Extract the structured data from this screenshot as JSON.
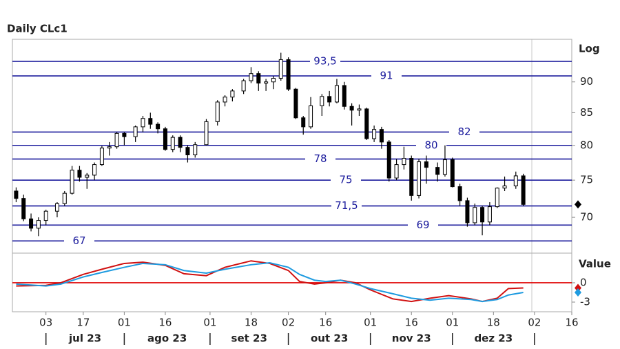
{
  "chart_data": [
    {
      "type": "candlestick",
      "title": "Daily CLc1",
      "scale_label": "Log",
      "log_scale": true,
      "ylim": [
        65.5,
        97.4
      ],
      "yticks": [
        70,
        75,
        80,
        85,
        90
      ],
      "xlim": [
        "2023-06-20",
        "2024-01-16"
      ],
      "levels": [
        {
          "value": 93.5,
          "label": "93,5"
        },
        {
          "value": 91,
          "label": "91"
        },
        {
          "value": 82,
          "label": "82"
        },
        {
          "value": 80,
          "label": "80"
        },
        {
          "value": 78,
          "label": "78"
        },
        {
          "value": 75,
          "label": "75"
        },
        {
          "value": 71.5,
          "label": "71,5"
        },
        {
          "value": 69,
          "label": "69"
        },
        {
          "value": 67,
          "label": "67"
        }
      ],
      "level_color": "#1a1a9c",
      "up_color": "#ffffff",
      "down_color": "#000000",
      "x": [
        "2023-06-21",
        "2023-06-23",
        "2023-06-27",
        "2023-06-29",
        "2023-07-03",
        "2023-07-06",
        "2023-07-10",
        "2023-07-12",
        "2023-07-14",
        "2023-07-18",
        "2023-07-20",
        "2023-07-24",
        "2023-07-26",
        "2023-07-28",
        "2023-08-01",
        "2023-08-04",
        "2023-08-08",
        "2023-08-10",
        "2023-08-14",
        "2023-08-16",
        "2023-08-18",
        "2023-08-22",
        "2023-08-24",
        "2023-08-28",
        "2023-08-31",
        "2023-09-05",
        "2023-09-07",
        "2023-09-11",
        "2023-09-14",
        "2023-09-18",
        "2023-09-20",
        "2023-09-22",
        "2023-09-26",
        "2023-09-28",
        "2023-10-02",
        "2023-10-04",
        "2023-10-06",
        "2023-10-10",
        "2023-10-13",
        "2023-10-17",
        "2023-10-19",
        "2023-10-23",
        "2023-10-25",
        "2023-10-27",
        "2023-10-31",
        "2023-11-02",
        "2023-11-06",
        "2023-11-08",
        "2023-11-10",
        "2023-11-14",
        "2023-11-16",
        "2023-11-20",
        "2023-11-22",
        "2023-11-27",
        "2023-11-29",
        "2023-12-01",
        "2023-12-05",
        "2023-12-07",
        "2023-12-11",
        "2023-12-13",
        "2023-12-15",
        "2023-12-19",
        "2023-12-21",
        "2023-12-26",
        "2023-12-28"
      ],
      "open": [
        73.5,
        72.5,
        69.8,
        68.6,
        69.6,
        70.8,
        71.8,
        73.2,
        76.4,
        75.4,
        75.7,
        77.2,
        79.6,
        79.8,
        81.8,
        81.3,
        82.8,
        84.1,
        83.2,
        82.5,
        79.4,
        81.2,
        79.7,
        78.6,
        80.1,
        83.6,
        86.7,
        87.5,
        88.5,
        90.2,
        91.4,
        89.8,
        90,
        90.6,
        93.8,
        88.8,
        84.2,
        82.8,
        86.1,
        87.6,
        86.7,
        89.4,
        86,
        85.4,
        85.6,
        81,
        82.4,
        80.5,
        75.3,
        77.2,
        78.1,
        72.9,
        77.6,
        76.8,
        75.8,
        77.9,
        74.1,
        72.2,
        69.3,
        71.3,
        69.4,
        71.4,
        73.9,
        74.2,
        75.6
      ],
      "high": [
        74,
        73,
        70.5,
        70,
        71,
        72,
        73.5,
        77,
        77,
        76,
        77.5,
        79.9,
        80.5,
        82,
        82,
        83,
        84.5,
        85,
        83.5,
        82.8,
        81.5,
        81.5,
        80,
        80.5,
        84,
        87,
        87.8,
        88.8,
        90.5,
        92.5,
        91.8,
        90.5,
        91,
        95,
        94.2,
        89,
        84.5,
        87.5,
        88,
        88.5,
        90.5,
        90,
        86.5,
        86.3,
        85.8,
        83,
        82.8,
        80.8,
        78,
        79.8,
        78.5,
        78,
        78.5,
        77.5,
        80,
        78.2,
        74.5,
        72.6,
        71.8,
        71.5,
        72,
        74,
        75.5,
        76.2,
        75.9
      ],
      "low": [
        72,
        69.5,
        68.2,
        67.6,
        69,
        70,
        71.5,
        73,
        74.8,
        73.8,
        75,
        77,
        78.5,
        79.5,
        80,
        80.5,
        82,
        82.5,
        81.8,
        79.2,
        79,
        79,
        77.5,
        78.2,
        80,
        83,
        86,
        86.8,
        88,
        89.8,
        88.5,
        88.5,
        88.8,
        90.2,
        88.5,
        84,
        81.6,
        82.5,
        84.5,
        86,
        86.5,
        85.5,
        83,
        84.5,
        80.8,
        80.5,
        79.5,
        74.8,
        75,
        76.5,
        72.2,
        72.5,
        74.5,
        74.8,
        75.5,
        74,
        71.5,
        68.8,
        69,
        67.7,
        69,
        71.2,
        73.5,
        73.8,
        71.5
      ],
      "close": [
        72.5,
        69.8,
        68.6,
        69.6,
        70.8,
        71.8,
        73.2,
        76.4,
        75.4,
        75.7,
        77.2,
        79.6,
        79.8,
        81.8,
        81.3,
        82.8,
        84.1,
        83.2,
        82.5,
        79.4,
        81.2,
        79.7,
        78.6,
        80.1,
        83.6,
        86.7,
        87.5,
        88.5,
        90.2,
        91.4,
        89.8,
        90,
        90.6,
        93.8,
        88.8,
        84.2,
        82.8,
        86.1,
        87.6,
        86.7,
        89.4,
        86,
        85.4,
        85.6,
        81,
        82.4,
        80.5,
        75.3,
        77.2,
        78.1,
        72.9,
        77.6,
        76.8,
        75.8,
        77.9,
        74.1,
        72.2,
        69.3,
        71.3,
        69.4,
        71.4,
        73.9,
        74.2,
        75.6,
        71.7
      ]
    },
    {
      "type": "line",
      "scale_label": "Value",
      "ylim": [
        -4.5,
        4.6
      ],
      "yticks": [
        0,
        -3
      ],
      "reference_line": {
        "value": 0,
        "color": "#e00000"
      },
      "xlim": [
        "2023-06-20",
        "2024-01-16"
      ],
      "x": [
        "2023-06-21",
        "2023-07-03",
        "2023-07-07",
        "2023-07-17",
        "2023-07-24",
        "2023-08-01",
        "2023-08-08",
        "2023-08-16",
        "2023-08-23",
        "2023-08-31",
        "2023-09-07",
        "2023-09-18",
        "2023-09-25",
        "2023-10-02",
        "2023-10-05",
        "2023-10-11",
        "2023-10-16",
        "2023-10-20",
        "2023-10-26",
        "2023-11-01",
        "2023-11-09",
        "2023-11-16",
        "2023-11-23",
        "2023-11-30",
        "2023-12-08",
        "2023-12-13",
        "2023-12-19",
        "2023-12-22",
        "2023-12-28"
      ],
      "series": [
        {
          "color": "#d01010",
          "values": [
            -0.5,
            -0.4,
            0,
            1.3,
            2.1,
            3,
            3.2,
            2.7,
            1.4,
            1.1,
            2.4,
            3.4,
            3,
            1.9,
            0.2,
            -0.2,
            0,
            0.4,
            0,
            -1.1,
            -2.5,
            -2.9,
            -2.4,
            -2,
            -2.5,
            -2.9,
            -2.4,
            -0.9,
            -0.8
          ]
        },
        {
          "color": "#1e9be0",
          "values": [
            -0.2,
            -0.5,
            -0.2,
            0.9,
            1.6,
            2.4,
            3,
            2.8,
            1.9,
            1.5,
            2.1,
            2.8,
            3.1,
            2.4,
            1.3,
            0.4,
            0.2,
            0.4,
            -0.2,
            -0.9,
            -1.7,
            -2.4,
            -2.7,
            -2.4,
            -2.6,
            -2.9,
            -2.6,
            -1.9,
            -1.5
          ]
        }
      ],
      "xticks": [
        {
          "value": "2023-07-03",
          "label": "03"
        },
        {
          "value": "2023-07-17",
          "label": "17"
        },
        {
          "value": "2023-08-01",
          "label": "01"
        },
        {
          "value": "2023-08-16",
          "label": "16"
        },
        {
          "value": "2023-09-01",
          "label": "01"
        },
        {
          "value": "2023-09-18",
          "label": "18"
        },
        {
          "value": "2023-10-02",
          "label": "02"
        },
        {
          "value": "2023-10-16",
          "label": "16"
        },
        {
          "value": "2023-11-01",
          "label": "01"
        },
        {
          "value": "2023-11-16",
          "label": "16"
        },
        {
          "value": "2023-12-01",
          "label": "01"
        },
        {
          "value": "2023-12-18",
          "label": "18"
        },
        {
          "value": "2024-01-02",
          "label": "02"
        },
        {
          "value": "2024-01-16",
          "label": "16"
        }
      ],
      "month_bounds": [
        "2023-07-03",
        "2023-08-01",
        "2023-09-01",
        "2023-10-02",
        "2023-11-01",
        "2023-12-01",
        "2024-01-02"
      ],
      "months": [
        "jul 23",
        "ago 23",
        "set 23",
        "out 23",
        "nov 23",
        "dez 23"
      ]
    }
  ]
}
